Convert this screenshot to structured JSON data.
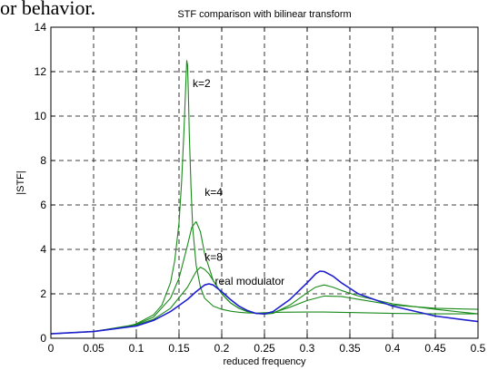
{
  "page_text": "or behavior.",
  "chart_data": {
    "type": "line",
    "title": "STF comparison with bilinear transform",
    "xlabel": "reduced frequency",
    "ylabel": "|STF|",
    "xlim": [
      0,
      0.5
    ],
    "ylim": [
      0,
      14
    ],
    "xticks": [
      0,
      0.05,
      0.1,
      0.15,
      0.2,
      0.25,
      0.3,
      0.35,
      0.4,
      0.45,
      0.5
    ],
    "xtick_labels": [
      "0",
      "0.05",
      "0.1",
      "0.15",
      "0.2",
      "0.25",
      "0.3",
      "0.35",
      "0.4",
      "0.45",
      "0.5"
    ],
    "yticks": [
      0,
      2,
      4,
      6,
      8,
      10,
      12,
      14
    ],
    "ytick_labels": [
      "0",
      "2",
      "4",
      "6",
      "8",
      "10",
      "12",
      "14"
    ],
    "grid": true,
    "grid_style": "dashed",
    "colors": {
      "bilinear": "#1a8a1a",
      "real": "#1f1fd0",
      "axes": "#000000",
      "grid": "#000000"
    },
    "series": [
      {
        "name": "k=2",
        "color": "#1a8a1a",
        "x": [
          0,
          0.05,
          0.08,
          0.1,
          0.12,
          0.13,
          0.14,
          0.145,
          0.15,
          0.153,
          0.156,
          0.158,
          0.159,
          0.16,
          0.161,
          0.162,
          0.164,
          0.166,
          0.17,
          0.175,
          0.18,
          0.19,
          0.2,
          0.21,
          0.22,
          0.23,
          0.24,
          0.25,
          0.27,
          0.3,
          0.32,
          0.35,
          0.4,
          0.45,
          0.5
        ],
        "y": [
          0.2,
          0.3,
          0.45,
          0.65,
          1.05,
          1.5,
          2.5,
          3.5,
          5.2,
          7.0,
          9.5,
          11.5,
          12.5,
          12.3,
          11.0,
          9.2,
          6.8,
          5.0,
          3.3,
          2.3,
          1.8,
          1.45,
          1.3,
          1.22,
          1.17,
          1.14,
          1.13,
          1.15,
          1.17,
          1.18,
          1.18,
          1.16,
          1.12,
          1.1,
          1.1
        ]
      },
      {
        "name": "k=4",
        "color": "#1a8a1a",
        "x": [
          0,
          0.05,
          0.1,
          0.12,
          0.14,
          0.15,
          0.16,
          0.165,
          0.17,
          0.175,
          0.18,
          0.19,
          0.2,
          0.21,
          0.22,
          0.23,
          0.24,
          0.25,
          0.26,
          0.28,
          0.3,
          0.32,
          0.34,
          0.36,
          0.4,
          0.45,
          0.5
        ],
        "y": [
          0.2,
          0.3,
          0.62,
          0.95,
          1.8,
          2.7,
          4.2,
          5.0,
          5.25,
          4.8,
          3.8,
          2.6,
          2.0,
          1.6,
          1.35,
          1.2,
          1.12,
          1.1,
          1.15,
          1.4,
          1.7,
          1.9,
          1.88,
          1.75,
          1.5,
          1.35,
          1.3
        ]
      },
      {
        "name": "k=8",
        "color": "#1a8a1a",
        "x": [
          0,
          0.05,
          0.1,
          0.12,
          0.14,
          0.16,
          0.17,
          0.175,
          0.18,
          0.185,
          0.19,
          0.2,
          0.21,
          0.22,
          0.23,
          0.24,
          0.25,
          0.26,
          0.28,
          0.3,
          0.31,
          0.32,
          0.33,
          0.34,
          0.36,
          0.4,
          0.45,
          0.5
        ],
        "y": [
          0.2,
          0.3,
          0.6,
          0.85,
          1.35,
          2.3,
          3.0,
          3.2,
          3.1,
          2.9,
          2.6,
          2.0,
          1.6,
          1.35,
          1.2,
          1.12,
          1.08,
          1.12,
          1.5,
          2.05,
          2.3,
          2.4,
          2.3,
          2.15,
          1.9,
          1.55,
          1.3,
          1.1
        ]
      },
      {
        "name": "real modulator",
        "color": "#1f1fd0",
        "x": [
          0,
          0.05,
          0.1,
          0.12,
          0.14,
          0.16,
          0.17,
          0.18,
          0.185,
          0.19,
          0.2,
          0.21,
          0.22,
          0.23,
          0.24,
          0.25,
          0.26,
          0.28,
          0.3,
          0.31,
          0.315,
          0.32,
          0.33,
          0.34,
          0.36,
          0.4,
          0.45,
          0.5
        ],
        "y": [
          0.2,
          0.3,
          0.55,
          0.8,
          1.2,
          1.75,
          2.1,
          2.4,
          2.45,
          2.4,
          2.1,
          1.75,
          1.45,
          1.25,
          1.12,
          1.1,
          1.2,
          1.75,
          2.5,
          2.9,
          3.02,
          3.0,
          2.8,
          2.5,
          2.0,
          1.45,
          1.0,
          0.75
        ]
      }
    ],
    "annotations": [
      {
        "text": "k=2",
        "x": 0.166,
        "y": 11.3
      },
      {
        "text": "k=4",
        "x": 0.18,
        "y": 6.4
      },
      {
        "text": "k=8",
        "x": 0.18,
        "y": 3.5
      },
      {
        "text": "real modulator",
        "x": 0.192,
        "y": 2.4
      }
    ]
  }
}
